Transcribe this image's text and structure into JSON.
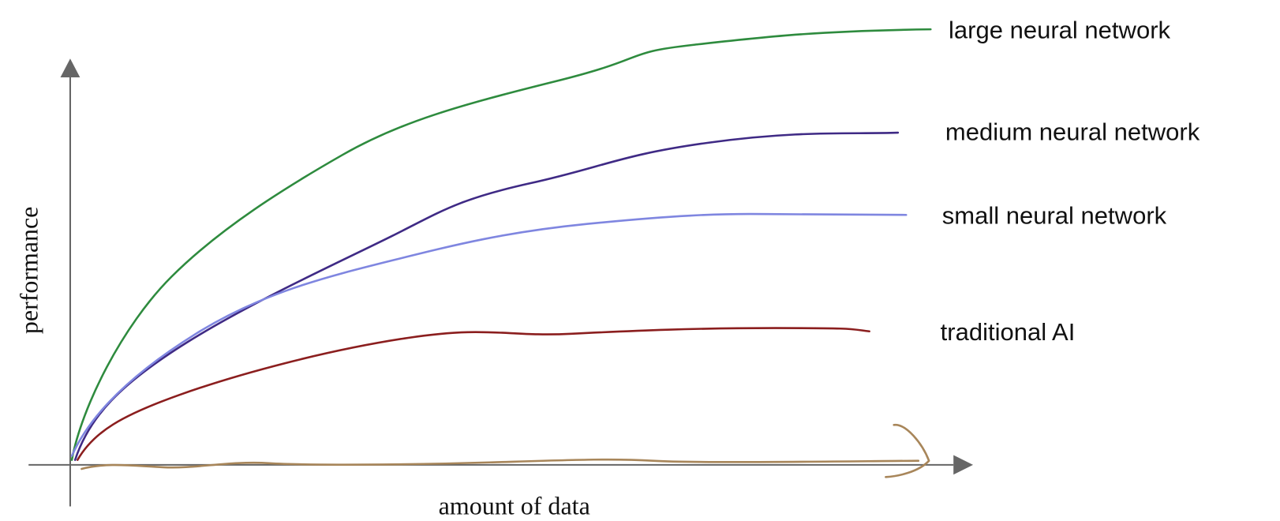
{
  "axes": {
    "y_label": "performance",
    "x_label": "amount of data"
  },
  "curves": [
    {
      "label": "large neural network"
    },
    {
      "label": "medium neural network"
    },
    {
      "label": "small neural network"
    },
    {
      "label": "traditional AI"
    }
  ]
}
